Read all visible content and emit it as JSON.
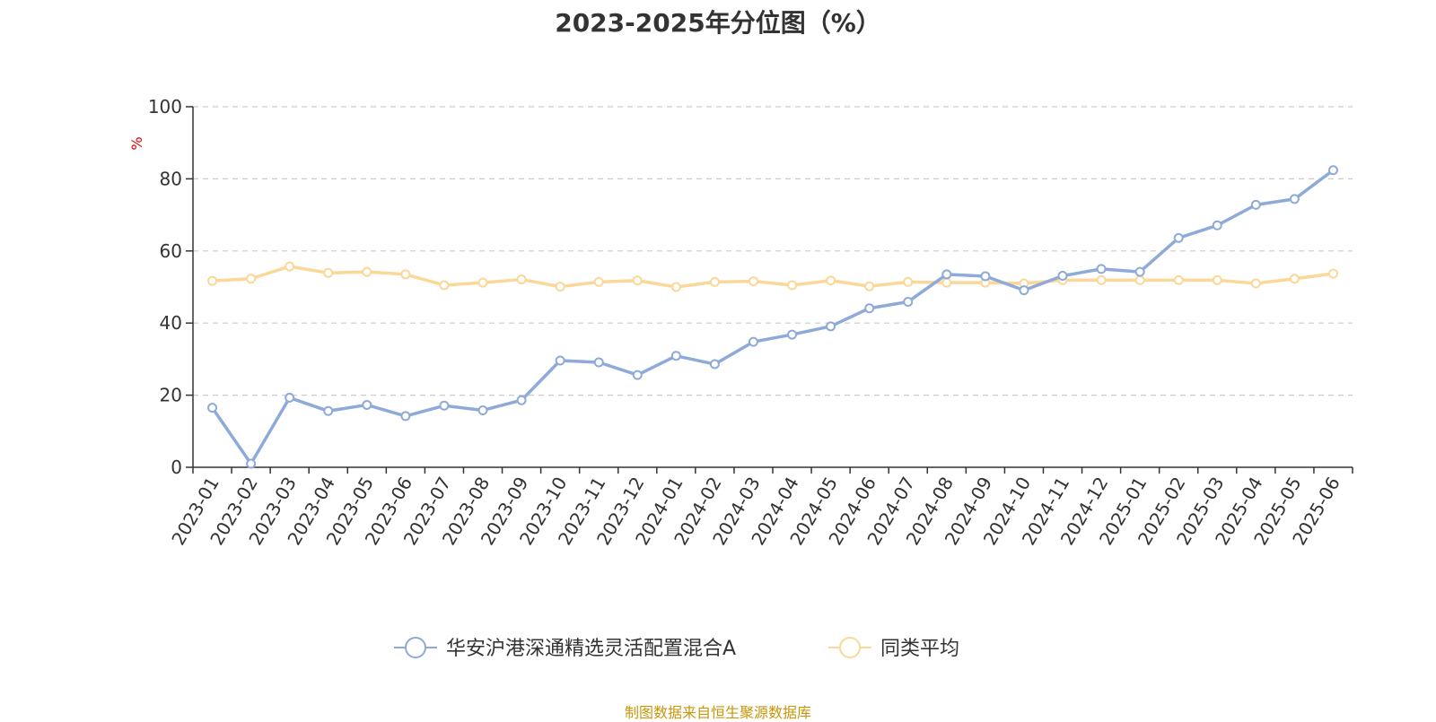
{
  "chart_data": {
    "type": "line",
    "title": "2023-2025年分位图（%）",
    "ylabel": "%",
    "xlabel": "",
    "ylim": [
      0,
      100
    ],
    "yticks": [
      "0",
      "20",
      "40",
      "60",
      "80",
      "100"
    ],
    "grid": true,
    "legend_position": "bottom",
    "categories": [
      "2023-01",
      "2023-02",
      "2023-03",
      "2023-04",
      "2023-05",
      "2023-06",
      "2023-07",
      "2023-08",
      "2023-09",
      "2023-10",
      "2023-11",
      "2023-12",
      "2024-01",
      "2024-02",
      "2024-03",
      "2024-04",
      "2024-05",
      "2024-06",
      "2024-07",
      "2024-08",
      "2024-09",
      "2024-10",
      "2024-11",
      "2024-12",
      "2025-01",
      "2025-02",
      "2025-03",
      "2025-04",
      "2025-05",
      "2025-06"
    ],
    "series": [
      {
        "name": "华安沪港深通精选灵活配置混合A",
        "color": "#8eaad8",
        "values": [
          16.5,
          1.0,
          19.3,
          15.6,
          17.3,
          14.2,
          17.1,
          15.8,
          18.6,
          29.6,
          29.1,
          25.6,
          30.9,
          28.6,
          34.8,
          36.8,
          39.1,
          44.1,
          45.9,
          53.5,
          53.0,
          49.1,
          53.1,
          55.0,
          54.2,
          63.6,
          67.1,
          72.8,
          74.4,
          82.4
        ]
      },
      {
        "name": "同类平均",
        "color": "#fbd798",
        "values": [
          51.7,
          52.3,
          55.7,
          53.9,
          54.2,
          53.5,
          50.5,
          51.2,
          52.1,
          50.1,
          51.4,
          51.8,
          50.0,
          51.4,
          51.6,
          50.5,
          51.8,
          50.2,
          51.4,
          51.2,
          51.2,
          51.0,
          51.9,
          51.9,
          51.9,
          51.9,
          51.9,
          51.0,
          52.3,
          53.7
        ]
      }
    ]
  },
  "source_text": "制图数据来自恒生聚源数据库"
}
